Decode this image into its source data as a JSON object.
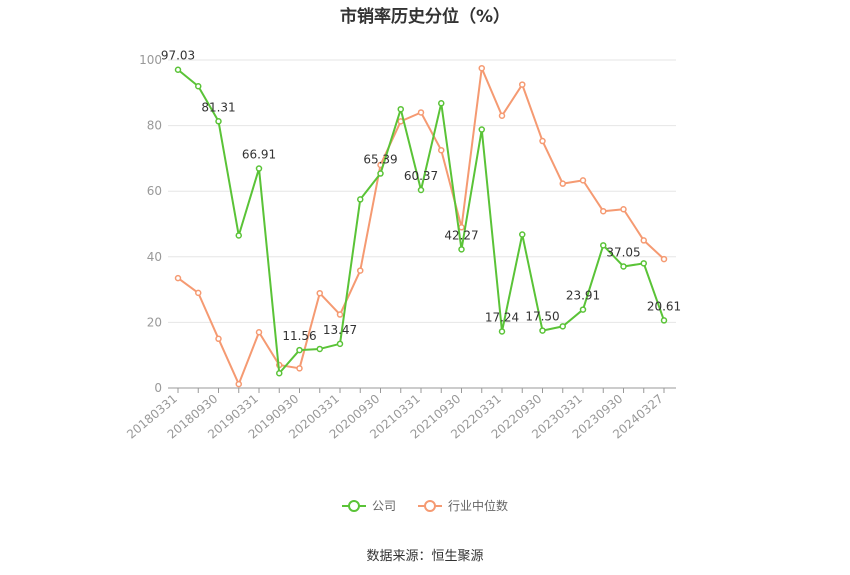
{
  "chart_data": {
    "type": "line",
    "title": "市销率历史分位（%）",
    "source": "数据来源：恒生聚源",
    "ylim": [
      0,
      100
    ],
    "yticks": [
      0,
      20,
      40,
      60,
      80,
      100
    ],
    "grid": true,
    "legend_position": "bottom",
    "x": [
      "20180331",
      "20180630",
      "20180930",
      "20181231",
      "20190331",
      "20190630",
      "20190930",
      "20191231",
      "20200331",
      "20200630",
      "20200930",
      "20201231",
      "20210331",
      "20210630",
      "20210930",
      "20211231",
      "20220331",
      "20220630",
      "20220930",
      "20221231",
      "20230331",
      "20230630",
      "20230930",
      "20231231",
      "20240327"
    ],
    "xtick_labels": [
      "20180331",
      "20180930",
      "20190331",
      "20190930",
      "20200331",
      "20200930",
      "20210331",
      "20210930",
      "20220331",
      "20220930",
      "20230331",
      "20230930",
      "20240327"
    ],
    "series": [
      {
        "name": "公司",
        "color": "#5ac337",
        "values": [
          97.03,
          92.0,
          81.31,
          46.5,
          66.91,
          4.5,
          11.56,
          11.9,
          13.47,
          57.5,
          65.39,
          85.0,
          60.37,
          86.8,
          42.27,
          78.8,
          17.24,
          46.8,
          17.5,
          18.8,
          23.91,
          43.5,
          37.05,
          38.0,
          20.61
        ],
        "labels": {
          "0": "97.03",
          "2": "81.31",
          "4": "66.91",
          "6": "11.56",
          "8": "13.47",
          "10": "65.39",
          "12": "60.37",
          "14": "42.27",
          "16": "17.24",
          "18": "17.50",
          "20": "23.91",
          "22": "37.05",
          "24": "20.61"
        }
      },
      {
        "name": "行业中位数",
        "color": "#f59a72",
        "values": [
          33.5,
          29.0,
          15.0,
          1.2,
          17.0,
          7.0,
          6.0,
          28.9,
          22.4,
          35.8,
          68.0,
          81.3,
          84.0,
          72.5,
          49.0,
          97.5,
          83.0,
          92.5,
          75.3,
          62.3,
          63.3,
          53.9,
          54.5,
          45.0,
          39.3
        ]
      }
    ]
  }
}
